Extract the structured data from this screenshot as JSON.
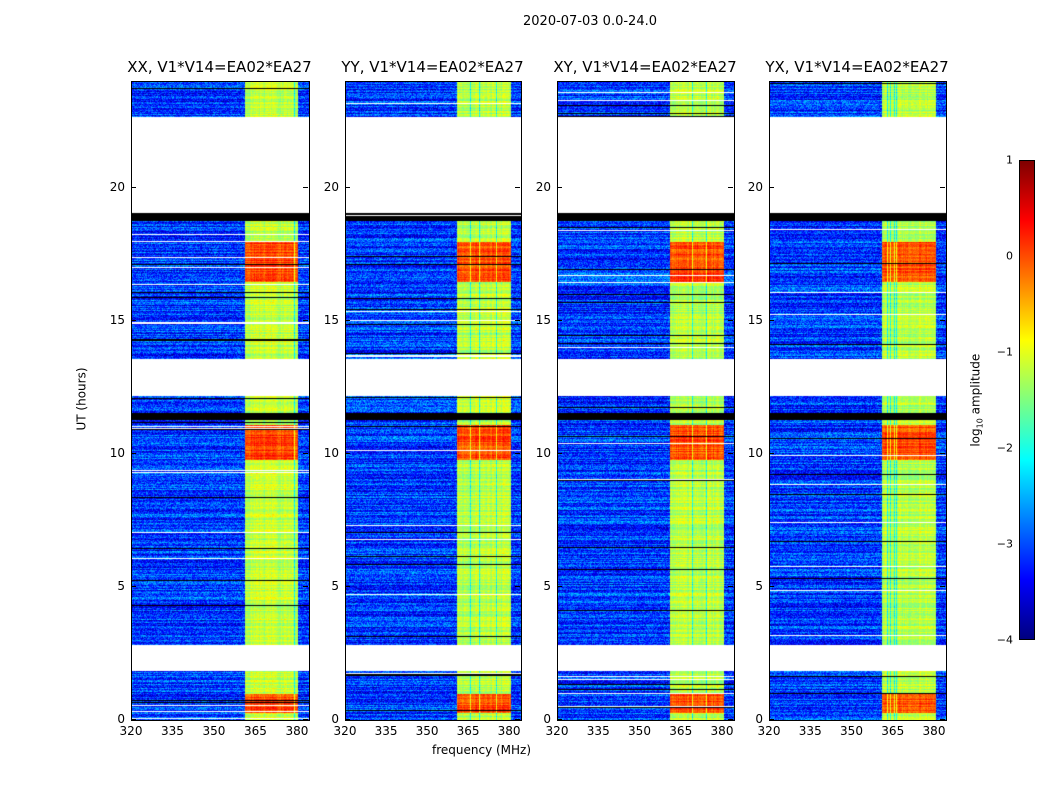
{
  "figure": {
    "suptitle": "2020-07-03 0.0-24.0",
    "xlabel": "frequency (MHz)",
    "ylabel": "UT (hours)"
  },
  "chart_data": [
    {
      "type": "heatmap",
      "title": "XX, V1*V14=EA02*EA27",
      "seed": 11
    },
    {
      "type": "heatmap",
      "title": "YY, V1*V14=EA02*EA27",
      "seed": 23
    },
    {
      "type": "heatmap",
      "title": "XY, V1*V14=EA02*EA27",
      "seed": 37
    },
    {
      "type": "heatmap",
      "title": "YX, V1*V14=EA02*EA27",
      "seed": 51
    }
  ],
  "axes": {
    "xlim": [
      320,
      384
    ],
    "ylim": [
      0,
      24
    ],
    "xticks": [
      "320",
      "335",
      "350",
      "365",
      "380"
    ],
    "xtick_values": [
      320,
      335,
      350,
      365,
      380
    ],
    "yticks": [
      "0",
      "5",
      "10",
      "15",
      "20"
    ],
    "ytick_values": [
      0,
      5,
      10,
      15,
      20
    ],
    "flagged_hours": [
      [
        1.85,
        2.85
      ],
      [
        12.2,
        13.6
      ],
      [
        19.1,
        22.7
      ]
    ],
    "black_hours": [
      [
        18.8,
        19.1
      ],
      [
        11.3,
        11.55
      ]
    ],
    "rfi_band_mhz": [
      360.5,
      380
    ],
    "strong_rfi_hours": [
      [
        0.3,
        1.0
      ],
      [
        9.8,
        11.1
      ],
      [
        16.5,
        18.0
      ]
    ]
  },
  "colorbar": {
    "label": "log10 amplitude",
    "label_main": "log",
    "label_sub": "10",
    "label_rest": " amplitude",
    "colormap": "jet",
    "range": [
      -4,
      1
    ],
    "ticks": [
      "1",
      "0",
      "−1",
      "−2",
      "−3",
      "−4"
    ],
    "tick_values": [
      1,
      0,
      -1,
      -2,
      -3,
      -4
    ]
  }
}
